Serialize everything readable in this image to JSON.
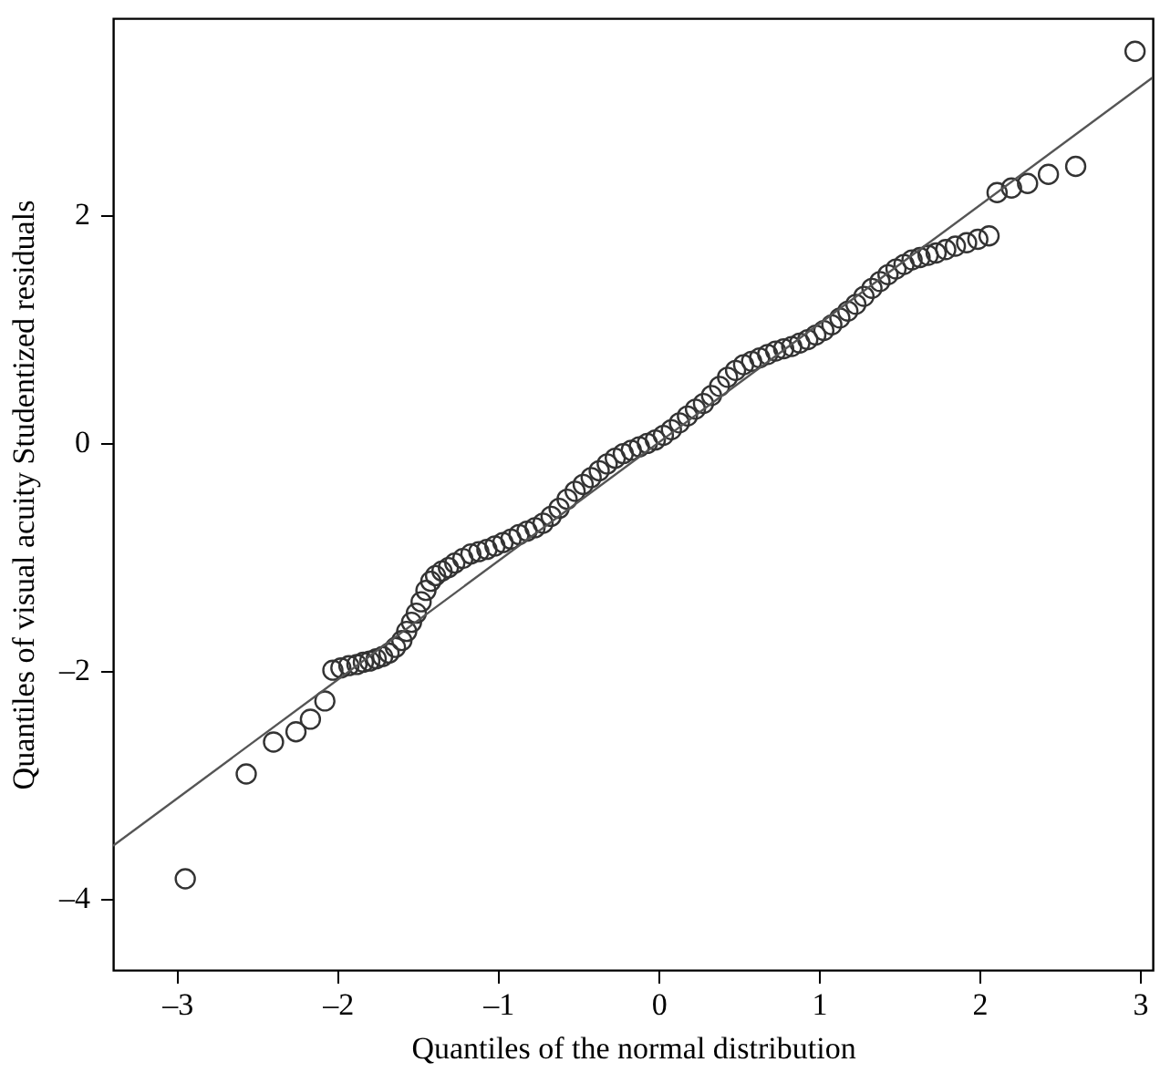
{
  "chart_data": {
    "type": "scatter",
    "xlabel": "Quantiles of the normal distribution",
    "ylabel": "Quantiles of visual acuity Studentized residuals",
    "xlim": [
      -3.4,
      3.08
    ],
    "ylim": [
      -4.63,
      3.72
    ],
    "xticks": [
      {
        "value": -3,
        "label": "–3"
      },
      {
        "value": -2,
        "label": "–2"
      },
      {
        "value": -1,
        "label": "–1"
      },
      0,
      1,
      2,
      3
    ],
    "yticks": [
      {
        "value": -4,
        "label": "–4"
      },
      {
        "value": -2,
        "label": "–2"
      },
      0,
      2
    ],
    "grid": false,
    "series": [
      {
        "color": "#333333",
        "marker": "circle",
        "x": [
          -2.95,
          -2.57,
          -2.4,
          -2.26,
          -2.17,
          -2.08,
          -2.03,
          -1.98,
          -1.93,
          -1.88,
          -1.84,
          -1.8,
          -1.76,
          -1.72,
          -1.68,
          -1.64,
          -1.6,
          -1.57,
          -1.54,
          -1.51,
          -1.48,
          -1.45,
          -1.42,
          -1.39,
          -1.35,
          -1.31,
          -1.27,
          -1.22,
          -1.17,
          -1.12,
          -1.07,
          -1.02,
          -0.97,
          -0.92,
          -0.87,
          -0.82,
          -0.77,
          -0.72,
          -0.67,
          -0.62,
          -0.57,
          -0.52,
          -0.47,
          -0.42,
          -0.37,
          -0.32,
          -0.27,
          -0.22,
          -0.17,
          -0.12,
          -0.07,
          -0.02,
          0.03,
          0.08,
          0.13,
          0.18,
          0.23,
          0.28,
          0.33,
          0.38,
          0.43,
          0.48,
          0.53,
          0.58,
          0.63,
          0.68,
          0.73,
          0.78,
          0.83,
          0.88,
          0.93,
          0.98,
          1.03,
          1.08,
          1.13,
          1.18,
          1.23,
          1.28,
          1.33,
          1.38,
          1.43,
          1.48,
          1.53,
          1.58,
          1.63,
          1.68,
          1.73,
          1.79,
          1.85,
          1.92,
          1.99,
          2.06,
          2.11,
          2.2,
          2.3,
          2.43,
          2.6,
          2.97
        ],
        "values": [
          -3.83,
          -2.91,
          -2.63,
          -2.54,
          -2.43,
          -2.27,
          -2.0,
          -1.98,
          -1.96,
          -1.95,
          -1.93,
          -1.92,
          -1.9,
          -1.88,
          -1.85,
          -1.8,
          -1.74,
          -1.66,
          -1.58,
          -1.5,
          -1.4,
          -1.3,
          -1.22,
          -1.17,
          -1.13,
          -1.1,
          -1.06,
          -1.02,
          -0.98,
          -0.96,
          -0.94,
          -0.91,
          -0.88,
          -0.85,
          -0.81,
          -0.78,
          -0.75,
          -0.71,
          -0.65,
          -0.58,
          -0.5,
          -0.43,
          -0.37,
          -0.31,
          -0.25,
          -0.19,
          -0.14,
          -0.1,
          -0.07,
          -0.04,
          -0.01,
          0.02,
          0.06,
          0.11,
          0.17,
          0.23,
          0.29,
          0.34,
          0.41,
          0.49,
          0.57,
          0.63,
          0.68,
          0.71,
          0.74,
          0.77,
          0.8,
          0.82,
          0.84,
          0.87,
          0.9,
          0.94,
          0.98,
          1.03,
          1.09,
          1.15,
          1.21,
          1.28,
          1.35,
          1.41,
          1.47,
          1.52,
          1.56,
          1.6,
          1.62,
          1.64,
          1.66,
          1.69,
          1.72,
          1.75,
          1.78,
          1.81,
          2.19,
          2.23,
          2.27,
          2.35,
          2.42,
          3.43
        ]
      },
      {
        "type": "line",
        "color": "#555555",
        "marker": "none",
        "x": [
          -3.4,
          3.08
        ],
        "values": [
          -3.54,
          3.2
        ]
      }
    ]
  }
}
